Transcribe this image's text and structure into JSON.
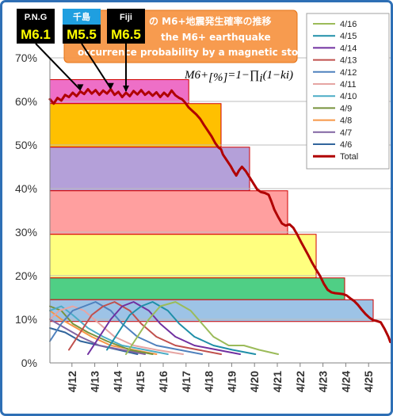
{
  "chart_data": {
    "type": "line",
    "title_lines": [
      "の M6+地震発生確率の推移",
      "the M6+ earthquake",
      "occurrence probability by a magnetic storm."
    ],
    "formula": {
      "main": "M6+",
      "sub": "[%]",
      "rest": "=1−∏",
      "sub2": "i",
      "tail": "(1−ki)"
    },
    "ylim": [
      0,
      70
    ],
    "yticks": [
      "0%",
      "10%",
      "20%",
      "30%",
      "40%",
      "50%",
      "60%",
      "70%"
    ],
    "x_start": "4/11",
    "x_end": "4/26",
    "xticks": [
      "4/12",
      "4/13",
      "4/14",
      "4/15",
      "4/16",
      "4/17",
      "4/18",
      "4/19",
      "4/20",
      "4/21",
      "4/22",
      "4/23",
      "4/24",
      "4/25"
    ],
    "legend_position": "top-right",
    "series": [
      {
        "name": "4/16",
        "color": "#9bbb59",
        "values": [
          [
            4.0,
            2
          ],
          [
            4.6,
            6
          ],
          [
            5.2,
            10
          ],
          [
            5.8,
            13
          ],
          [
            6.6,
            14
          ],
          [
            7.4,
            12
          ],
          [
            8.0,
            9
          ],
          [
            8.6,
            6
          ],
          [
            9.4,
            4
          ],
          [
            10.2,
            4
          ],
          [
            11.0,
            3
          ],
          [
            12.0,
            2
          ]
        ]
      },
      {
        "name": "4/15",
        "color": "#1f8fa8",
        "values": [
          [
            3.0,
            3
          ],
          [
            3.6,
            7
          ],
          [
            4.2,
            11
          ],
          [
            4.8,
            13
          ],
          [
            5.4,
            14
          ],
          [
            6.2,
            12
          ],
          [
            6.8,
            9
          ],
          [
            7.6,
            6
          ],
          [
            8.6,
            4
          ],
          [
            9.6,
            3
          ],
          [
            10.8,
            2
          ]
        ]
      },
      {
        "name": "4/14",
        "color": "#7030a0",
        "values": [
          [
            2.0,
            2
          ],
          [
            2.6,
            6
          ],
          [
            3.2,
            10
          ],
          [
            3.8,
            13
          ],
          [
            4.4,
            14
          ],
          [
            5.2,
            12
          ],
          [
            5.8,
            9
          ],
          [
            6.6,
            6
          ],
          [
            7.6,
            4
          ],
          [
            8.8,
            3
          ],
          [
            10.0,
            2
          ]
        ]
      },
      {
        "name": "4/13",
        "color": "#c0504d",
        "values": [
          [
            1.0,
            3
          ],
          [
            1.6,
            7
          ],
          [
            2.2,
            11
          ],
          [
            2.8,
            13
          ],
          [
            3.4,
            14
          ],
          [
            4.2,
            12
          ],
          [
            4.8,
            9
          ],
          [
            5.6,
            6
          ],
          [
            6.6,
            4
          ],
          [
            7.8,
            3
          ],
          [
            9.0,
            2
          ]
        ]
      },
      {
        "name": "4/12",
        "color": "#4f81bd",
        "values": [
          [
            0.0,
            5
          ],
          [
            0.6,
            9
          ],
          [
            1.2,
            12
          ],
          [
            1.8,
            13
          ],
          [
            2.4,
            14
          ],
          [
            3.2,
            12
          ],
          [
            3.8,
            9
          ],
          [
            4.6,
            6
          ],
          [
            5.6,
            4
          ],
          [
            6.8,
            3
          ],
          [
            8.0,
            2
          ]
        ]
      },
      {
        "name": "4/11",
        "color": "#e6a5a3",
        "values": [
          [
            0.0,
            10
          ],
          [
            0.5,
            12
          ],
          [
            1.2,
            13
          ],
          [
            1.8,
            12
          ],
          [
            2.6,
            9
          ],
          [
            3.4,
            6
          ],
          [
            4.4,
            4
          ],
          [
            5.6,
            3
          ],
          [
            7.0,
            2
          ]
        ]
      },
      {
        "name": "4/10",
        "color": "#4bacc6",
        "values": [
          [
            0.0,
            12
          ],
          [
            0.6,
            13
          ],
          [
            1.2,
            11
          ],
          [
            2.0,
            8
          ],
          [
            2.8,
            6
          ],
          [
            3.8,
            4
          ],
          [
            5.0,
            3
          ],
          [
            6.2,
            2
          ]
        ]
      },
      {
        "name": "4/9",
        "color": "#77933c",
        "values": [
          [
            0.0,
            13
          ],
          [
            0.6,
            12
          ],
          [
            1.2,
            9
          ],
          [
            2.0,
            7
          ],
          [
            3.0,
            5
          ],
          [
            4.2,
            3
          ],
          [
            5.4,
            2
          ]
        ]
      },
      {
        "name": "4/8",
        "color": "#f79646",
        "values": [
          [
            0.0,
            12
          ],
          [
            0.6,
            10
          ],
          [
            1.4,
            8
          ],
          [
            2.2,
            6
          ],
          [
            3.2,
            4
          ],
          [
            4.4,
            3
          ],
          [
            5.6,
            2
          ]
        ]
      },
      {
        "name": "4/7",
        "color": "#8064a2",
        "values": [
          [
            0.0,
            10
          ],
          [
            0.8,
            8
          ],
          [
            1.6,
            6
          ],
          [
            2.6,
            4
          ],
          [
            3.8,
            3
          ],
          [
            5.0,
            2
          ]
        ]
      },
      {
        "name": "4/6",
        "color": "#31659c",
        "values": [
          [
            0.0,
            8
          ],
          [
            0.8,
            7
          ],
          [
            1.6,
            5
          ],
          [
            2.6,
            4
          ],
          [
            3.6,
            3
          ],
          [
            4.6,
            2
          ]
        ]
      },
      {
        "name": "Total",
        "color": "#b00000",
        "width": 3,
        "values": [
          [
            0.0,
            60.5
          ],
          [
            0.2,
            59.5
          ],
          [
            0.4,
            60.8
          ],
          [
            0.6,
            60.2
          ],
          [
            0.8,
            61.5
          ],
          [
            1.0,
            61.0
          ],
          [
            1.2,
            62.0
          ],
          [
            1.4,
            61.2
          ],
          [
            1.6,
            62.3
          ],
          [
            1.8,
            61.7
          ],
          [
            2.0,
            62.8
          ],
          [
            2.2,
            61.8
          ],
          [
            2.4,
            62.6
          ],
          [
            2.6,
            61.5
          ],
          [
            2.8,
            62.5
          ],
          [
            3.0,
            61.8
          ],
          [
            3.2,
            62.8
          ],
          [
            3.4,
            61.5
          ],
          [
            3.6,
            62.2
          ],
          [
            3.8,
            61.0
          ],
          [
            4.0,
            62.0
          ],
          [
            4.2,
            61.2
          ],
          [
            4.4,
            62.4
          ],
          [
            4.6,
            61.6
          ],
          [
            4.8,
            62.6
          ],
          [
            5.0,
            61.5
          ],
          [
            5.2,
            62.2
          ],
          [
            5.4,
            61.3
          ],
          [
            5.6,
            62.1
          ],
          [
            5.8,
            61.0
          ],
          [
            6.0,
            62.0
          ],
          [
            6.2,
            61.2
          ],
          [
            6.4,
            62.5
          ],
          [
            6.6,
            61.4
          ],
          [
            6.8,
            60.8
          ],
          [
            6.95,
            60.5
          ],
          [
            7.1,
            59.8
          ],
          [
            7.3,
            58.6
          ],
          [
            7.5,
            57.8
          ],
          [
            7.7,
            57.0
          ],
          [
            7.9,
            56.0
          ],
          [
            8.1,
            54.6
          ],
          [
            8.3,
            53.3
          ],
          [
            8.5,
            52.0
          ],
          [
            8.7,
            50.4
          ],
          [
            8.85,
            49.5
          ],
          [
            9.0,
            49.0
          ],
          [
            9.1,
            47.8
          ],
          [
            9.3,
            46.5
          ],
          [
            9.5,
            45.2
          ],
          [
            9.65,
            44.0
          ],
          [
            9.8,
            43.0
          ],
          [
            9.95,
            44.2
          ],
          [
            10.1,
            45.0
          ],
          [
            10.3,
            44.0
          ],
          [
            10.5,
            42.6
          ],
          [
            10.7,
            41.2
          ],
          [
            10.9,
            39.8
          ],
          [
            11.1,
            39.2
          ],
          [
            11.3,
            39.0
          ],
          [
            11.5,
            38.6
          ],
          [
            11.65,
            37.0
          ],
          [
            11.8,
            35.2
          ],
          [
            12.0,
            33.5
          ],
          [
            12.2,
            32.0
          ],
          [
            12.4,
            31.5
          ],
          [
            12.6,
            31.8
          ],
          [
            12.8,
            31.0
          ],
          [
            13.0,
            29.5
          ],
          [
            13.2,
            27.8
          ],
          [
            13.4,
            26.2
          ],
          [
            13.6,
            24.6
          ],
          [
            13.8,
            22.9
          ],
          [
            14.0,
            21.4
          ],
          [
            14.2,
            20.0
          ],
          [
            14.4,
            18.2
          ],
          [
            14.6,
            16.8
          ],
          [
            14.8,
            16.2
          ],
          [
            15.0,
            16.0
          ],
          [
            15.2,
            15.9
          ],
          [
            15.4,
            15.8
          ],
          [
            15.6,
            15.5
          ],
          [
            15.8,
            14.8
          ],
          [
            16.0,
            14.2
          ],
          [
            16.2,
            13.3
          ],
          [
            16.4,
            12.2
          ],
          [
            16.6,
            11.2
          ],
          [
            16.8,
            10.4
          ],
          [
            17.0,
            9.8
          ],
          [
            17.2,
            9.6
          ],
          [
            17.4,
            9.3
          ],
          [
            17.6,
            7.8
          ],
          [
            17.8,
            6.0
          ],
          [
            17.9,
            4.8
          ]
        ]
      }
    ],
    "bands": [
      {
        "color": "#ee6fc7",
        "x0": 0,
        "x1": 7.3,
        "y0": 59.5,
        "y1": 65
      },
      {
        "color": "#ffc000",
        "x0": 0,
        "x1": 9.0,
        "y0": 49.5,
        "y1": 59.5
      },
      {
        "color": "#b4a0d9",
        "x0": 0,
        "x1": 10.5,
        "y0": 39.5,
        "y1": 49.5
      },
      {
        "color": "#ff9f9f",
        "x0": 0,
        "x1": 12.5,
        "y0": 29.5,
        "y1": 39.5
      },
      {
        "color": "#ffff7f",
        "x0": 0,
        "x1": 14.0,
        "y0": 19.5,
        "y1": 29.5
      },
      {
        "color": "#4fcf85",
        "x0": 0,
        "x1": 15.5,
        "y0": 14.5,
        "y1": 19.5
      },
      {
        "color": "#9dc3e6",
        "x0": 0,
        "x1": 17.0,
        "y0": 9.5,
        "y1": 14.5
      }
    ],
    "badges": [
      {
        "top": "P.N.G",
        "value": "M6.1",
        "top_color": "#000000",
        "top_text_color": "#ffffff",
        "value_color": "#ffff00",
        "target_x": 1.6,
        "target_y": 62.3
      },
      {
        "top": "千島",
        "value": "M5.5",
        "top_color": "#1f9fe0",
        "top_text_color": "#ffffff",
        "value_color": "#ffff00",
        "target_x": 3.2,
        "target_y": 62.6
      },
      {
        "top": "Fiji",
        "value": "M6.5",
        "top_color": "#000000",
        "top_text_color": "#ffffff",
        "value_color": "#ffff00",
        "target_x": 4.0,
        "target_y": 62.0
      }
    ]
  }
}
